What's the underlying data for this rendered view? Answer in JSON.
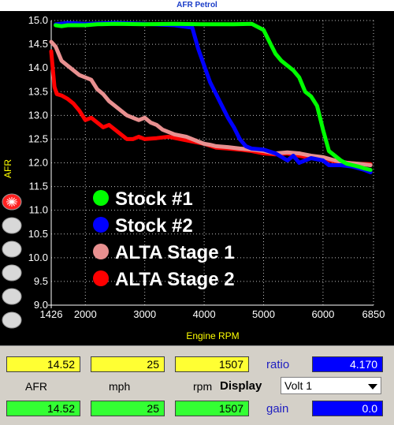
{
  "window": {
    "title": "AFR Petrol"
  },
  "chart_data": {
    "type": "line",
    "title": "",
    "xlabel": "Engine RPM",
    "ylabel": "AFR",
    "xlim": [
      1426,
      6850
    ],
    "ylim": [
      9.0,
      15.0
    ],
    "x_ticks": [
      "1426",
      "2000",
      "3000",
      "4000",
      "5000",
      "6000",
      "6850"
    ],
    "x_tick_values": [
      1426,
      2000,
      3000,
      4000,
      5000,
      6000,
      6850
    ],
    "y_ticks": [
      "9.0",
      "9.5",
      "10.0",
      "10.5",
      "11.0",
      "11.5",
      "12.0",
      "12.5",
      "13.0",
      "13.5",
      "14.0",
      "14.5",
      "15.0"
    ],
    "y_tick_values": [
      9.0,
      9.5,
      10.0,
      10.5,
      11.0,
      11.5,
      12.0,
      12.5,
      13.0,
      13.5,
      14.0,
      14.5,
      15.0
    ],
    "grid": true,
    "legend_position": "lower-left",
    "series": [
      {
        "name": "Stock #1",
        "color": "#00ff00",
        "points": [
          [
            1500,
            14.9
          ],
          [
            1600,
            14.88
          ],
          [
            1700,
            14.9
          ],
          [
            2000,
            14.9
          ],
          [
            2200,
            14.92
          ],
          [
            2500,
            14.93
          ],
          [
            3000,
            14.92
          ],
          [
            3500,
            14.93
          ],
          [
            4000,
            14.92
          ],
          [
            4500,
            14.92
          ],
          [
            4800,
            14.93
          ],
          [
            5000,
            14.8
          ],
          [
            5100,
            14.55
          ],
          [
            5200,
            14.3
          ],
          [
            5300,
            14.15
          ],
          [
            5400,
            14.05
          ],
          [
            5500,
            13.95
          ],
          [
            5600,
            13.8
          ],
          [
            5700,
            13.5
          ],
          [
            5800,
            13.4
          ],
          [
            5900,
            13.2
          ],
          [
            6000,
            12.7
          ],
          [
            6100,
            12.25
          ],
          [
            6200,
            12.15
          ],
          [
            6300,
            12.05
          ],
          [
            6400,
            11.98
          ],
          [
            6500,
            11.95
          ],
          [
            6600,
            11.92
          ],
          [
            6700,
            11.88
          ],
          [
            6800,
            11.85
          ]
        ]
      },
      {
        "name": "Stock #2",
        "color": "#0000ff",
        "points": [
          [
            1500,
            14.92
          ],
          [
            1700,
            14.95
          ],
          [
            2000,
            14.93
          ],
          [
            2500,
            14.95
          ],
          [
            3000,
            14.93
          ],
          [
            3500,
            14.9
          ],
          [
            3800,
            14.85
          ],
          [
            3900,
            14.4
          ],
          [
            4000,
            14.05
          ],
          [
            4100,
            13.7
          ],
          [
            4200,
            13.45
          ],
          [
            4300,
            13.2
          ],
          [
            4400,
            12.95
          ],
          [
            4500,
            12.75
          ],
          [
            4600,
            12.5
          ],
          [
            4700,
            12.35
          ],
          [
            4800,
            12.3
          ],
          [
            5000,
            12.28
          ],
          [
            5200,
            12.2
          ],
          [
            5400,
            12.05
          ],
          [
            5500,
            12.15
          ],
          [
            5600,
            12.0
          ],
          [
            5800,
            12.1
          ],
          [
            6000,
            12.05
          ],
          [
            6100,
            11.95
          ],
          [
            6300,
            11.95
          ],
          [
            6500,
            11.92
          ],
          [
            6700,
            11.85
          ],
          [
            6800,
            11.8
          ]
        ]
      },
      {
        "name": "ALTA Stage 1",
        "color": "#e89090",
        "points": [
          [
            1426,
            14.55
          ],
          [
            1500,
            14.45
          ],
          [
            1600,
            14.15
          ],
          [
            1700,
            14.05
          ],
          [
            1800,
            13.95
          ],
          [
            1900,
            13.85
          ],
          [
            2000,
            13.8
          ],
          [
            2100,
            13.75
          ],
          [
            2200,
            13.55
          ],
          [
            2300,
            13.45
          ],
          [
            2400,
            13.3
          ],
          [
            2500,
            13.2
          ],
          [
            2600,
            13.1
          ],
          [
            2700,
            13.0
          ],
          [
            2800,
            12.95
          ],
          [
            2900,
            12.9
          ],
          [
            3000,
            12.95
          ],
          [
            3100,
            12.85
          ],
          [
            3200,
            12.8
          ],
          [
            3300,
            12.7
          ],
          [
            3400,
            12.65
          ],
          [
            3500,
            12.6
          ],
          [
            3700,
            12.55
          ],
          [
            3800,
            12.5
          ],
          [
            3900,
            12.45
          ],
          [
            4000,
            12.4
          ],
          [
            4100,
            12.38
          ],
          [
            4200,
            12.35
          ],
          [
            4400,
            12.33
          ],
          [
            4600,
            12.3
          ],
          [
            4800,
            12.28
          ],
          [
            5000,
            12.25
          ],
          [
            5200,
            12.2
          ],
          [
            5400,
            12.22
          ],
          [
            5600,
            12.2
          ],
          [
            5800,
            12.15
          ],
          [
            6000,
            12.12
          ],
          [
            6200,
            12.05
          ],
          [
            6400,
            12.0
          ],
          [
            6600,
            11.98
          ],
          [
            6800,
            11.95
          ]
        ]
      },
      {
        "name": "ALTA Stage 2",
        "color": "#ff0000",
        "points": [
          [
            1426,
            14.35
          ],
          [
            1480,
            13.6
          ],
          [
            1520,
            13.45
          ],
          [
            1600,
            13.42
          ],
          [
            1700,
            13.35
          ],
          [
            1800,
            13.25
          ],
          [
            1900,
            13.1
          ],
          [
            2000,
            12.9
          ],
          [
            2100,
            12.95
          ],
          [
            2200,
            12.85
          ],
          [
            2300,
            12.75
          ],
          [
            2400,
            12.8
          ],
          [
            2500,
            12.7
          ],
          [
            2600,
            12.6
          ],
          [
            2700,
            12.5
          ],
          [
            2800,
            12.5
          ],
          [
            2900,
            12.55
          ],
          [
            3000,
            12.5
          ],
          [
            3200,
            12.52
          ],
          [
            3400,
            12.55
          ],
          [
            3600,
            12.5
          ],
          [
            3800,
            12.45
          ],
          [
            4000,
            12.4
          ],
          [
            4200,
            12.32
          ],
          [
            4400,
            12.3
          ],
          [
            4600,
            12.28
          ],
          [
            4800,
            12.25
          ],
          [
            5000,
            12.2
          ],
          [
            5200,
            12.18
          ],
          [
            5400,
            12.2
          ],
          [
            5600,
            12.15
          ],
          [
            5800,
            12.1
          ],
          [
            6000,
            12.08
          ],
          [
            6200,
            12.03
          ],
          [
            6400,
            12.0
          ],
          [
            6600,
            11.98
          ],
          [
            6800,
            11.97
          ]
        ]
      }
    ]
  },
  "channel_buttons": [
    {
      "name": "channel-1",
      "active": true
    },
    {
      "name": "channel-2",
      "active": false
    },
    {
      "name": "channel-3",
      "active": false
    },
    {
      "name": "channel-4",
      "active": false
    },
    {
      "name": "channel-5",
      "active": false
    },
    {
      "name": "channel-6",
      "active": false
    }
  ],
  "controls": {
    "row1": {
      "afr": "14.52",
      "mph": "25",
      "rpm": "1507"
    },
    "labels": {
      "afr": "AFR",
      "mph": "mph",
      "rpm": "rpm",
      "display": "Display",
      "ratio": "ratio",
      "gain": "gain"
    },
    "row2": {
      "afr": "14.52",
      "mph": "25",
      "rpm": "1507"
    },
    "ratio_value": "4.170",
    "gain_value": "0.0",
    "display_selected": "Volt 1"
  },
  "colors": {
    "yellow_field": "#ffff33",
    "green_field": "#33ff33",
    "blue_field": "#0000ff",
    "axis_text": "#ffff00"
  }
}
